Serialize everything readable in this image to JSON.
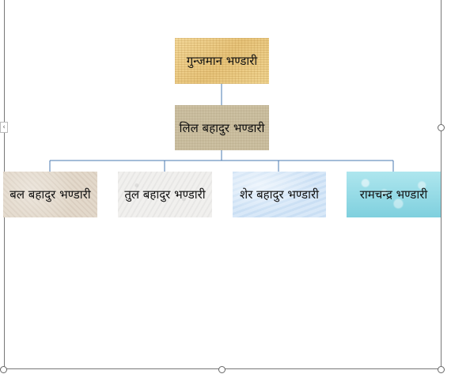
{
  "chart": {
    "root": {
      "label": "गुन्जमान भण्डारी"
    },
    "child": {
      "label": "लिल बहादुर भण्डारी"
    },
    "grandchildren": [
      {
        "label": "बल बहादुर भण्डारी"
      },
      {
        "label": "तुल बहादुर भण्डारी"
      },
      {
        "label": "शेर बहादुर भण्डारी"
      },
      {
        "label": "रामचन्द्र भण्डारी"
      }
    ]
  },
  "colors": {
    "connector": "#4a78b0",
    "frame": "#777777"
  },
  "left_arrow_icon": "chevron-left-icon"
}
